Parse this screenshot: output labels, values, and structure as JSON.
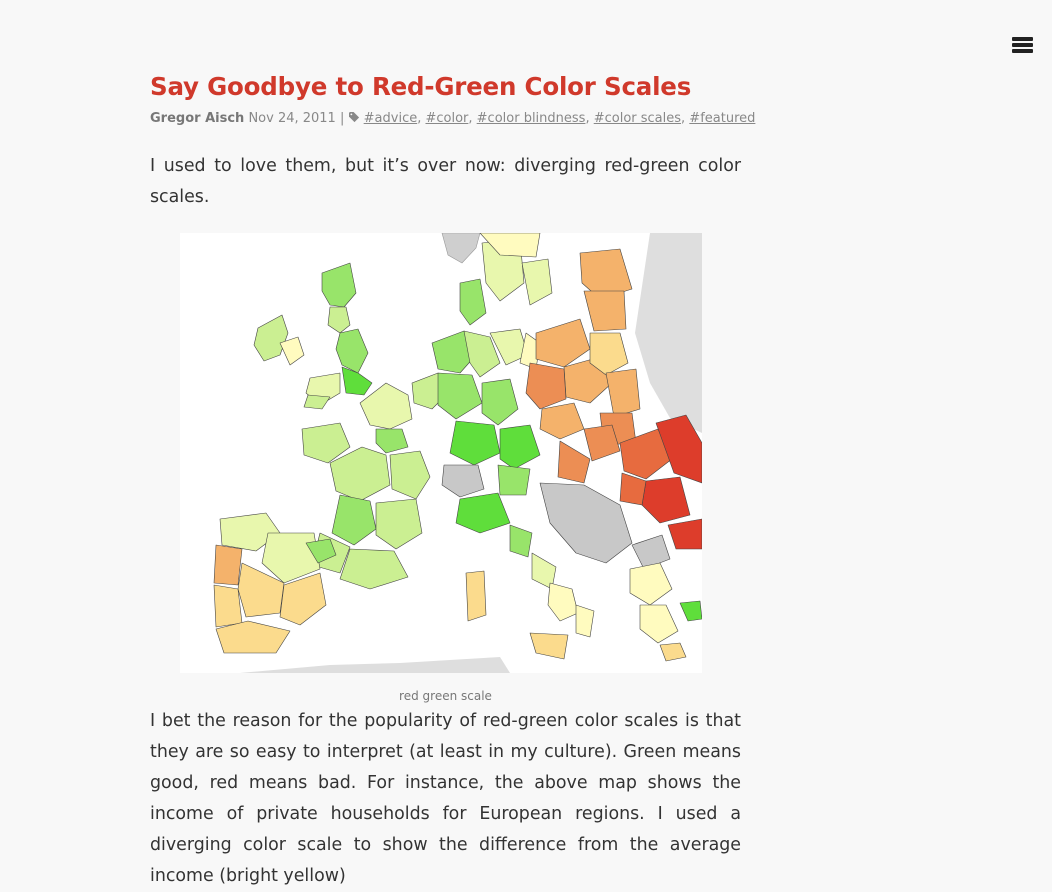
{
  "post": {
    "title": "Say Goodbye to Red-Green Color Scales",
    "author": "Gregor Aisch",
    "date": "Nov 24, 2011",
    "separator": "|",
    "tags": [
      "#advice",
      "#color",
      "#color blindness",
      "#color scales",
      "#featured"
    ],
    "intro": "I used to love them, but it’s over now: diverging red-green color scales.",
    "figure": {
      "caption": "red green scale",
      "scale_colors": [
        "#5fde3b",
        "#98e46a",
        "#cbef92",
        "#e8f7ad",
        "#fffbbf",
        "#fbdb8d",
        "#f4b26b",
        "#ec8e54",
        "#e76b3f",
        "#dd3d2b"
      ],
      "no_data_color": "#c8c8c8",
      "background_land_color": "#dedede"
    },
    "body": "I bet the reason for the popularity of red-green color scales is that they are so easy to interpret (at least in my culture). Green means good, red means bad. For instance, the above map shows the income of private households for European regions. I used a diverging color scale to show the difference from the average income (bright yellow)"
  },
  "menu": {
    "icon": "hamburger-menu-icon"
  }
}
